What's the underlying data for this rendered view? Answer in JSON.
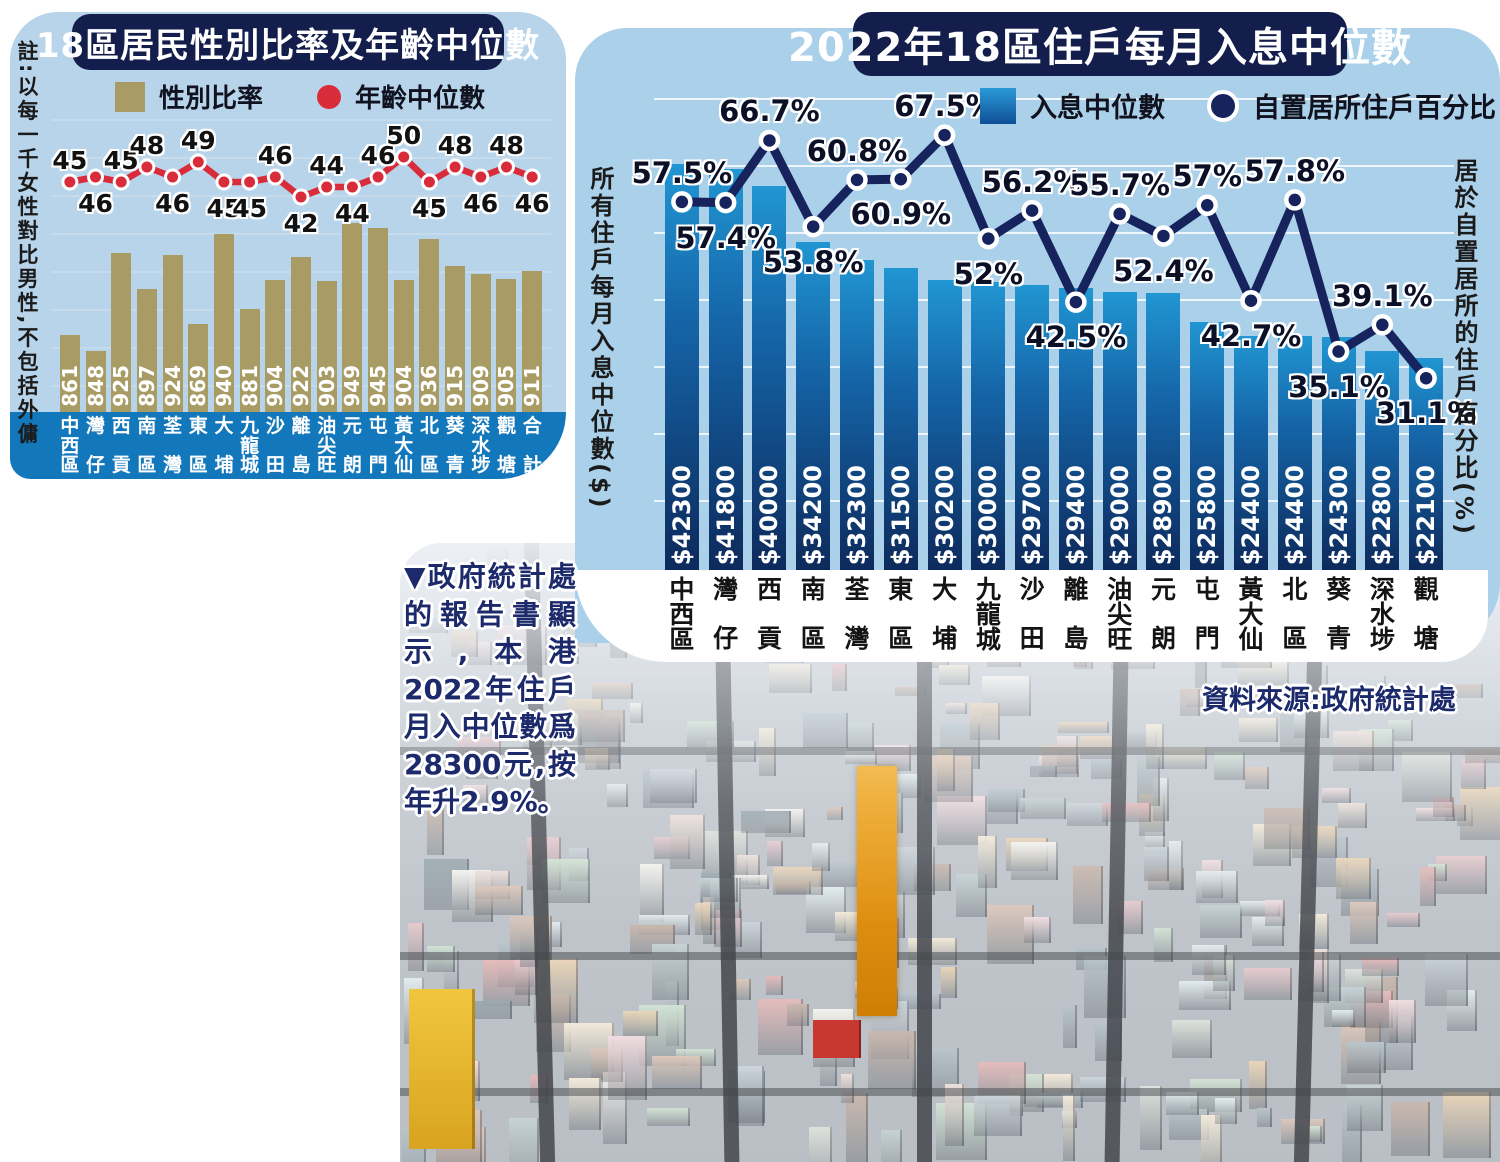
{
  "caption": "▼政府統計處的報告書顯示,本港2022年住戶月入中位數爲28300元,按年升2.9%。",
  "source": "資料來源:政府統計處",
  "colors": {
    "panel_light_blue_left": "#b8d4ea",
    "panel_light_blue_right": "#abd0ea",
    "title_navy": "#141e4c",
    "band_blue": "#1377bb",
    "bar_tan": "#a89c64",
    "line_red": "#d92c3b",
    "bar_blue_top": "#2196d2",
    "bar_blue_bottom": "#0d2a5c",
    "line_navy": "#16235c"
  },
  "chart_data": [
    {
      "type": "bar+line",
      "title": "18區居民性別比率及年齡中位數",
      "note": "註:以每一千女性對比男性,不包括外傭",
      "legend_position": "top",
      "grid": true,
      "categories": [
        "中西區",
        "灣仔",
        "西貢",
        "南區",
        "荃灣",
        "東區",
        "大埔",
        "九龍城",
        "沙田",
        "離島",
        "油尖旺",
        "元朗",
        "屯門",
        "黃大仙",
        "北區",
        "葵青",
        "深水埗",
        "觀塘",
        "合計"
      ],
      "series": [
        {
          "name": "性別比率",
          "type": "bar",
          "color": "#a89c64",
          "values": [
            861,
            848,
            925,
            897,
            924,
            869,
            940,
            881,
            904,
            922,
            903,
            949,
            945,
            904,
            936,
            915,
            909,
            905,
            911
          ],
          "value_labels": [
            "861",
            "848",
            "925",
            "897",
            "924",
            "869",
            "940",
            "881",
            "904",
            "922",
            "903",
            "949",
            "945",
            "904",
            "936",
            "915",
            "909",
            "905",
            "911"
          ]
        },
        {
          "name": "年齡中位數",
          "type": "line",
          "color": "#d92c3b",
          "values": [
            45,
            46,
            45,
            48,
            46,
            49,
            45,
            45,
            46,
            42,
            44,
            44,
            46,
            50,
            45,
            48,
            46,
            48,
            46
          ],
          "value_labels": [
            "45",
            "46",
            "45",
            "48",
            "46",
            "49",
            "45",
            "45",
            "46",
            "42",
            "44",
            "44",
            "46",
            "50",
            "45",
            "48",
            "46",
            "48",
            "46"
          ],
          "label_side": [
            "above",
            "below",
            "above",
            "above",
            "below",
            "above",
            "below",
            "below",
            "above",
            "below",
            "above",
            "below",
            "above",
            "above",
            "below",
            "above",
            "below",
            "above",
            "below"
          ]
        }
      ]
    },
    {
      "type": "bar+line",
      "title": "2022年18區住戶每月入息中位數",
      "ylabel_left": "所有住戶每月入息中位數($)",
      "ylabel_right": "居於自置居所的住戶百分比(%)",
      "legend_position": "top",
      "grid": true,
      "categories": [
        "中西區",
        "灣仔",
        "西貢",
        "南區",
        "荃灣",
        "東區",
        "大埔",
        "九龍城",
        "沙田",
        "離島",
        "油尖旺",
        "元朗",
        "屯門",
        "黃大仙",
        "北區",
        "葵青",
        "深水埗",
        "觀塘"
      ],
      "series": [
        {
          "name": "入息中位數",
          "type": "bar",
          "color": "#1565a8",
          "values": [
            42300,
            41800,
            40000,
            34200,
            32300,
            31500,
            30200,
            30000,
            29700,
            29400,
            29000,
            28900,
            25800,
            24400,
            24400,
            24300,
            22800,
            22100
          ],
          "value_labels": [
            "$42300",
            "$41800",
            "$40000",
            "$34200",
            "$32300",
            "$31500",
            "$30200",
            "$30000",
            "$29700",
            "$29400",
            "$29000",
            "$28900",
            "$25800",
            "$24400",
            "$24400",
            "$24300",
            "$22800",
            "$22100"
          ]
        },
        {
          "name": "自置居所住戶百分比",
          "type": "line",
          "color": "#16235c",
          "values": [
            57.5,
            57.4,
            66.7,
            53.8,
            60.8,
            60.9,
            67.5,
            52,
            56.2,
            42.5,
            55.7,
            52.4,
            57,
            42.7,
            57.8,
            35.1,
            39.1,
            31.1
          ],
          "value_labels": [
            "57.5%",
            "57.4%",
            "66.7%",
            "53.8%",
            "60.8%",
            "60.9%",
            "67.5%",
            "52%",
            "56.2%",
            "42.5%",
            "55.7%",
            "52.4%",
            "57%",
            "42.7%",
            "57.8%",
            "35.1%",
            "39.1%",
            "31.1%"
          ],
          "label_side": [
            "above",
            "below",
            "above",
            "below",
            "above",
            "below",
            "above",
            "below",
            "above",
            "below",
            "above",
            "below",
            "above",
            "below",
            "above",
            "below",
            "above",
            "below"
          ]
        }
      ]
    }
  ]
}
